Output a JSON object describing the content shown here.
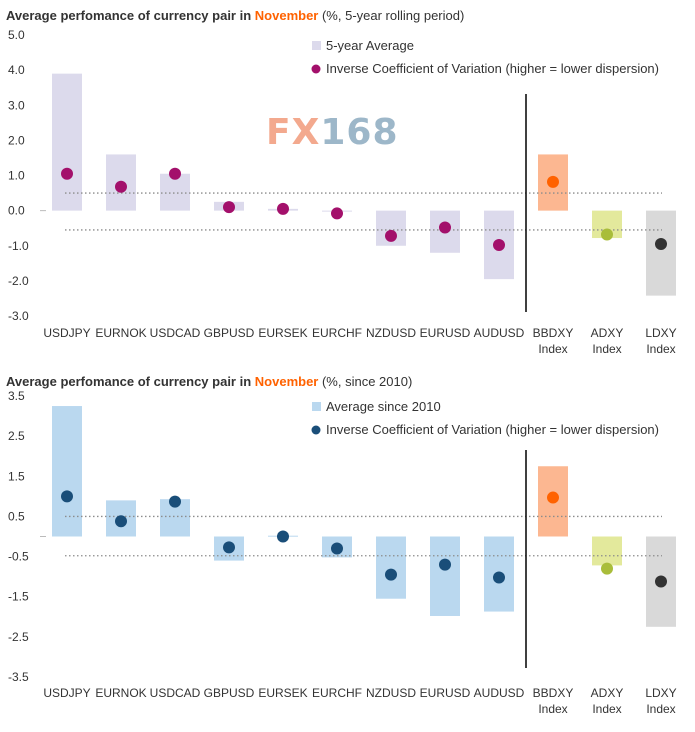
{
  "watermark": {
    "fx": "FX",
    "num": "168"
  },
  "colors": {
    "chart1_bar": "#dcdaec",
    "chart1_dot": "#a3106b",
    "chart2_bar": "#bad8ef",
    "chart2_dot": "#1a4e79",
    "bbdxy_bar": "#fcb791",
    "bbdxy_dot": "#ff6200",
    "adxy_bar": "#e3e99c",
    "adxy_dot": "#a9bd3a",
    "ldxy_bar": "#d9d9d9",
    "ldxy_dot": "#333333",
    "dotted_line": "#8c8c8c",
    "divider": "#000000"
  },
  "chart_data": [
    {
      "type": "bar",
      "title_prefix": "Average perfomance of currency pair in ",
      "title_highlight": "November",
      "title_suffix": " (%, 5-year rolling period)",
      "categories": [
        [
          "USDJPY"
        ],
        [
          "EURNOK"
        ],
        [
          "USDCAD"
        ],
        [
          "GBPUSD"
        ],
        [
          "EURSEK"
        ],
        [
          "EURCHF"
        ],
        [
          "NZDUSD"
        ],
        [
          "EURUSD"
        ],
        [
          "AUDUSD"
        ],
        [
          "BBDXY",
          "Index"
        ],
        [
          "ADXY",
          "Index"
        ],
        [
          "LDXY",
          "Index"
        ]
      ],
      "series": [
        {
          "name": "5-year Average",
          "values": [
            3.9,
            1.6,
            1.05,
            0.25,
            0.05,
            0.0,
            -1.0,
            -1.2,
            -1.95,
            1.6,
            -0.78,
            -2.42
          ]
        },
        {
          "name": "Inverse Coefficient of Variation (higher = lower dispersion)",
          "values": [
            1.05,
            0.68,
            1.05,
            0.1,
            0.05,
            -0.08,
            -0.72,
            -0.48,
            -0.98,
            0.82,
            -0.68,
            -0.95
          ]
        }
      ],
      "reference_lines": [
        0.5,
        -0.55
      ],
      "yticks": [
        5.0,
        4.0,
        3.0,
        2.0,
        1.0,
        0.0,
        -1.0,
        -2.0,
        -3.0
      ],
      "ytick_labels": [
        "5.0",
        "4.0",
        "3.0",
        "2.0",
        "1.0",
        "0.0",
        "-1.0",
        "-2.0",
        "-3.0"
      ],
      "ylim": [
        -3.0,
        5.0
      ],
      "xlabel": "",
      "ylabel": ""
    },
    {
      "type": "bar",
      "title_prefix": "Average perfomance of currency pair in ",
      "title_highlight": "November",
      "title_suffix": " (%, since 2010)",
      "categories": [
        [
          "USDJPY"
        ],
        [
          "EURNOK"
        ],
        [
          "USDCAD"
        ],
        [
          "GBPUSD"
        ],
        [
          "EURSEK"
        ],
        [
          "EURCHF"
        ],
        [
          "NZDUSD"
        ],
        [
          "EURUSD"
        ],
        [
          "AUDUSD"
        ],
        [
          "BBDXY",
          "Index"
        ],
        [
          "ADXY",
          "Index"
        ],
        [
          "LDXY",
          "Index"
        ]
      ],
      "series": [
        {
          "name": "Average since 2010",
          "values": [
            3.25,
            0.9,
            0.93,
            -0.6,
            0.02,
            -0.52,
            -1.55,
            -1.98,
            -1.87,
            1.75,
            -0.72,
            -2.25
          ]
        },
        {
          "name": "Inverse Coefficient of Variation (higher = lower dispersion)",
          "values": [
            1.0,
            0.38,
            0.87,
            -0.27,
            0.0,
            -0.3,
            -0.95,
            -0.7,
            -1.02,
            0.97,
            -0.8,
            -1.12
          ]
        }
      ],
      "reference_lines": [
        0.5,
        -0.48
      ],
      "yticks": [
        3.5,
        2.5,
        1.5,
        0.5,
        -0.5,
        -1.5,
        -2.5,
        -3.5
      ],
      "ytick_labels": [
        "3.5",
        "2.5",
        "1.5",
        "0.5",
        "-0.5",
        "-1.5",
        "-2.5",
        "-3.5"
      ],
      "ylim": [
        -3.5,
        3.5
      ],
      "xlabel": "",
      "ylabel": ""
    }
  ]
}
